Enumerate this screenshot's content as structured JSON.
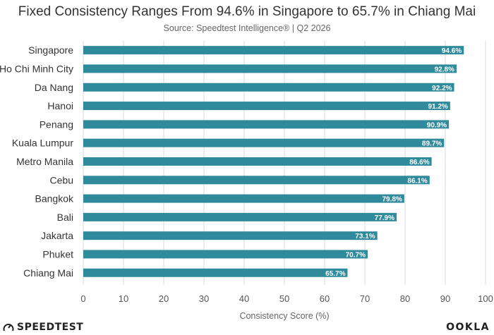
{
  "chart_data": {
    "type": "bar",
    "orientation": "horizontal",
    "title": "Fixed Consistency Ranges From 94.6% in Singapore to 65.7% in Chiang Mai",
    "subtitle": "Source: Speedtest Intelligence® | Q2 2026",
    "xlabel": "Consistency Score (%)",
    "ylabel": "",
    "xlim": [
      0,
      100
    ],
    "xticks": [
      0,
      10,
      20,
      30,
      40,
      50,
      60,
      70,
      80,
      90,
      100
    ],
    "grid": true,
    "bar_color": "#2f8a9c",
    "categories": [
      "Singapore",
      "Ho Chi Minh City",
      "Da Nang",
      "Hanoi",
      "Penang",
      "Kuala Lumpur",
      "Metro Manila",
      "Cebu",
      "Bangkok",
      "Bali",
      "Jakarta",
      "Phuket",
      "Chiang Mai"
    ],
    "values": [
      94.6,
      92.8,
      92.2,
      91.2,
      90.9,
      89.7,
      86.6,
      86.1,
      79.8,
      77.9,
      73.1,
      70.7,
      65.7
    ],
    "value_labels": [
      "94.6%",
      "92.8%",
      "92.2%",
      "91.2%",
      "90.9%",
      "89.7%",
      "86.6%",
      "86.1%",
      "79.8%",
      "77.9%",
      "73.1%",
      "70.7%",
      "65.7%"
    ]
  },
  "branding": {
    "left": "SPEEDTEST",
    "right": "OOKLA"
  }
}
